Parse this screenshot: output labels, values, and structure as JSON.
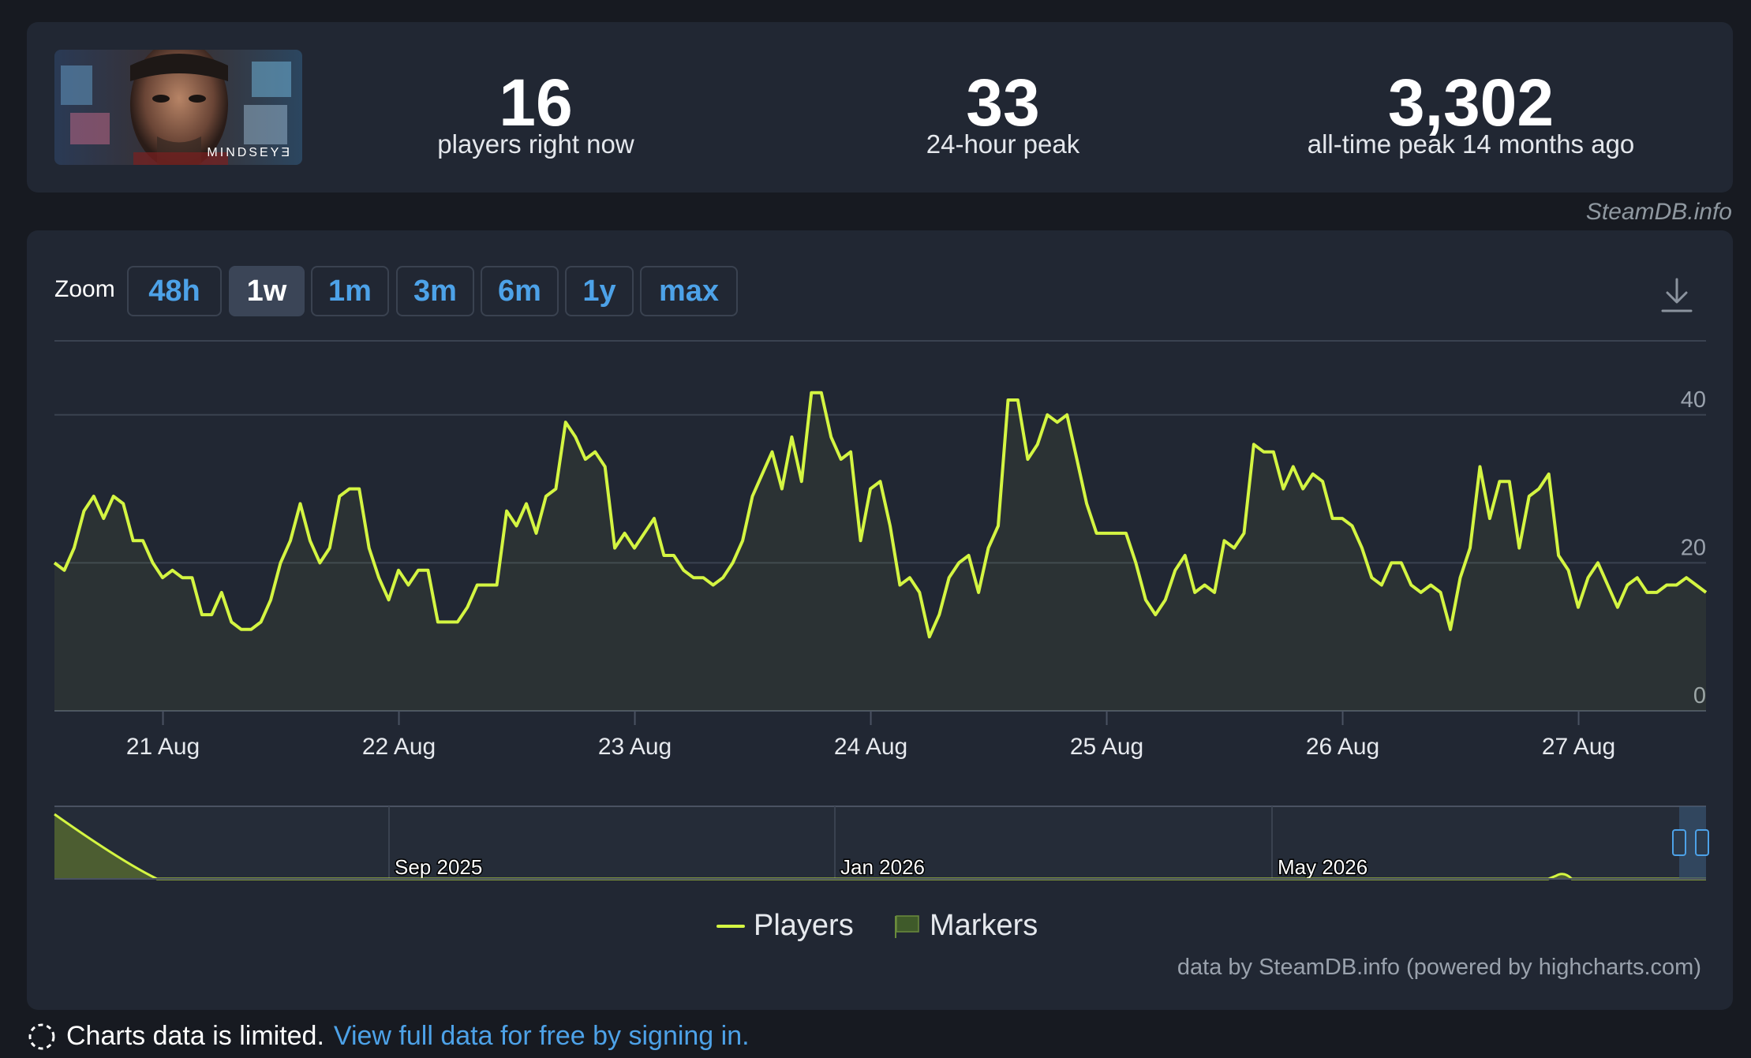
{
  "stats": {
    "current": {
      "value": "16",
      "label": "players right now"
    },
    "peak24": {
      "value": "33",
      "label": "24-hour peak"
    },
    "alltime": {
      "value": "3,302",
      "label": "all-time peak 14 months ago"
    }
  },
  "thumbnail": {
    "caption": "MINDSEYƎ"
  },
  "credit_top": "SteamDB.info",
  "zoom": {
    "label": "Zoom",
    "buttons": [
      "48h",
      "1w",
      "1m",
      "3m",
      "6m",
      "1y",
      "max"
    ],
    "active": "1w"
  },
  "icons": {
    "download": "download-icon",
    "loading": "dashed-circle-icon"
  },
  "colors": {
    "line": "#d4f542",
    "accent": "#4da2e8",
    "card": "#212733",
    "page": "#171a21"
  },
  "chart_data": {
    "type": "line",
    "title": "",
    "xlabel": "",
    "ylabel": "",
    "grid": true,
    "legend_position": "bottom",
    "ylim": [
      0,
      50
    ],
    "y_ticks": [
      "0",
      "20",
      "40"
    ],
    "x_ticks": [
      "21 Aug",
      "22 Aug",
      "23 Aug",
      "24 Aug",
      "25 Aug",
      "26 Aug",
      "27 Aug"
    ],
    "x_range_days": [
      20.54,
      27.54
    ],
    "series": [
      {
        "name": "Players",
        "hourly_start": "20 Aug 13:00",
        "values": [
          20,
          19,
          22,
          27,
          29,
          26,
          29,
          28,
          23,
          23,
          20,
          18,
          19,
          18,
          18,
          13,
          13,
          16,
          12,
          11,
          11,
          12,
          15,
          20,
          23,
          28,
          23,
          20,
          22,
          29,
          30,
          30,
          22,
          18,
          15,
          19,
          17,
          19,
          19,
          12,
          12,
          12,
          14,
          17,
          17,
          17,
          27,
          25,
          28,
          24,
          29,
          30,
          39,
          37,
          34,
          35,
          33,
          22,
          24,
          22,
          24,
          26,
          21,
          21,
          19,
          18,
          18,
          17,
          18,
          20,
          23,
          29,
          32,
          35,
          30,
          37,
          31,
          43,
          43,
          37,
          34,
          35,
          23,
          30,
          31,
          25,
          17,
          18,
          16,
          10,
          13,
          18,
          20,
          21,
          16,
          22,
          25,
          42,
          42,
          34,
          36,
          40,
          39,
          40,
          34,
          28,
          24,
          24,
          24,
          24,
          20,
          15,
          13,
          15,
          19,
          21,
          16,
          17,
          16,
          23,
          22,
          24,
          36,
          35,
          35,
          30,
          33,
          30,
          32,
          31,
          26,
          26,
          25,
          22,
          18,
          17,
          20,
          20,
          17,
          16,
          17,
          16,
          11,
          18,
          22,
          33,
          26,
          31,
          31,
          22,
          29,
          30,
          32,
          21,
          19,
          14,
          18,
          20,
          17,
          14,
          17,
          18,
          16,
          16,
          17,
          17,
          18,
          17,
          16
        ]
      }
    ],
    "navigator": {
      "type": "area",
      "labels": [
        "Sep 2025",
        "Jan 2026",
        "May 2026"
      ]
    }
  },
  "legend": {
    "players": "Players",
    "markers": "Markers"
  },
  "credit_bottom": "data by SteamDB.info (powered by highcharts.com)",
  "footer": {
    "text": "Charts data is limited.",
    "link": "View full data for free by signing in."
  }
}
